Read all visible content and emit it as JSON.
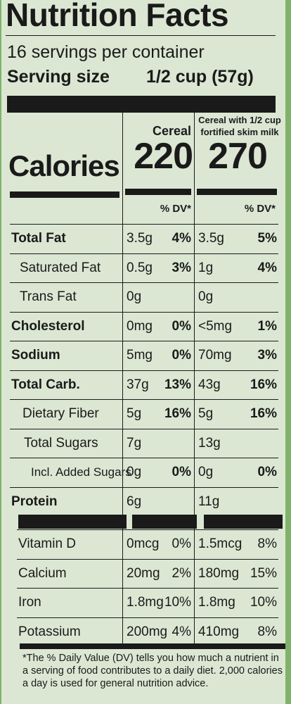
{
  "title": "Nutrition Facts",
  "servings": "16 servings per container",
  "serving_size_label": "Serving size",
  "serving_size": "1/2 cup (57g)",
  "columns": [
    "Cereal",
    "Cereal with 1/2 cup fortified skim milk"
  ],
  "calories_label": "Calories",
  "calories": [
    "220",
    "270"
  ],
  "dv_header": [
    "% DV*",
    "% DV*"
  ],
  "nutrients": [
    {
      "name": "Total Fat",
      "values": [
        [
          "3.5g",
          "4%"
        ],
        [
          "3.5g",
          "5%"
        ]
      ]
    },
    {
      "name": "Saturated Fat",
      "values": [
        [
          "0.5g",
          "3%"
        ],
        [
          "1g",
          "4%"
        ]
      ]
    },
    {
      "name": "Trans Fat",
      "values": [
        [
          "0g",
          null
        ],
        [
          "0g",
          null
        ]
      ]
    },
    {
      "name": "Cholesterol",
      "values": [
        [
          "0mg",
          "0%"
        ],
        [
          "<5mg",
          "1%"
        ]
      ]
    },
    {
      "name": "Sodium",
      "values": [
        [
          "5mg",
          "0%"
        ],
        [
          "70mg",
          "3%"
        ]
      ]
    },
    {
      "name": "Total Carb.",
      "values": [
        [
          "37g",
          "13%"
        ],
        [
          "43g",
          "16%"
        ]
      ]
    },
    {
      "name": "Dietary Fiber",
      "values": [
        [
          "5g",
          "16%"
        ],
        [
          "5g",
          "16%"
        ]
      ]
    },
    {
      "name": "Total Sugars",
      "values": [
        [
          "7g",
          null
        ],
        [
          "13g",
          null
        ]
      ]
    },
    {
      "name": "Incl. Added Sugars",
      "values": [
        [
          "0g",
          "0%"
        ],
        [
          "0g",
          "0%"
        ]
      ]
    },
    {
      "name": "Protein",
      "values": [
        [
          "6g",
          null
        ],
        [
          "11g",
          null
        ]
      ]
    }
  ],
  "vitamins": [
    {
      "name": "Vitamin D",
      "values": [
        [
          "0mcg",
          "0%"
        ],
        [
          "1.5mcg",
          "8%"
        ]
      ]
    },
    {
      "name": "Calcium",
      "values": [
        [
          "20mg",
          "2%"
        ],
        [
          "180mg",
          "15%"
        ]
      ]
    },
    {
      "name": "Iron",
      "values": [
        [
          "1.8mg",
          "10%"
        ],
        [
          "1.8mg",
          "10%"
        ]
      ]
    },
    {
      "name": "Potassium",
      "values": [
        [
          "200mg",
          "4%"
        ],
        [
          "410mg",
          "8%"
        ]
      ]
    }
  ],
  "footnote": "*The % Daily Value (DV) tells you how much a nutrient in a serving of food contributes to a daily diet. 2,000 calories a day is used for general nutrition advice."
}
